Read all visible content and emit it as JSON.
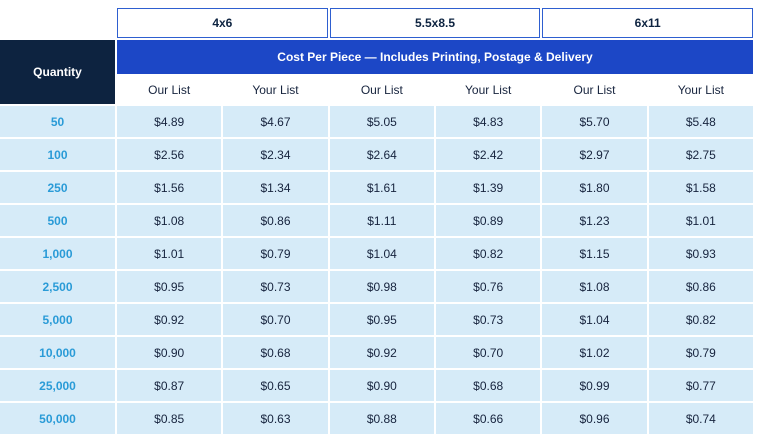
{
  "table": {
    "quantity_label": "Quantity",
    "banner": "Cost Per Piece — Includes Printing, Postage & Delivery",
    "size_headers": [
      "4x6",
      "5.5x8.5",
      "6x11"
    ],
    "sub_headers": [
      "Our List",
      "Your List"
    ],
    "rows": [
      {
        "quantity": "50",
        "prices": [
          "$4.89",
          "$4.67",
          "$5.05",
          "$4.83",
          "$5.70",
          "$5.48"
        ]
      },
      {
        "quantity": "100",
        "prices": [
          "$2.56",
          "$2.34",
          "$2.64",
          "$2.42",
          "$2.97",
          "$2.75"
        ]
      },
      {
        "quantity": "250",
        "prices": [
          "$1.56",
          "$1.34",
          "$1.61",
          "$1.39",
          "$1.80",
          "$1.58"
        ]
      },
      {
        "quantity": "500",
        "prices": [
          "$1.08",
          "$0.86",
          "$1.11",
          "$0.89",
          "$1.23",
          "$1.01"
        ]
      },
      {
        "quantity": "1,000",
        "prices": [
          "$1.01",
          "$0.79",
          "$1.04",
          "$0.82",
          "$1.15",
          "$0.93"
        ]
      },
      {
        "quantity": "2,500",
        "prices": [
          "$0.95",
          "$0.73",
          "$0.98",
          "$0.76",
          "$1.08",
          "$0.86"
        ]
      },
      {
        "quantity": "5,000",
        "prices": [
          "$0.92",
          "$0.70",
          "$0.95",
          "$0.73",
          "$1.04",
          "$0.82"
        ]
      },
      {
        "quantity": "10,000",
        "prices": [
          "$0.90",
          "$0.68",
          "$0.92",
          "$0.70",
          "$1.02",
          "$0.79"
        ]
      },
      {
        "quantity": "25,000",
        "prices": [
          "$0.87",
          "$0.65",
          "$0.90",
          "$0.68",
          "$0.99",
          "$0.77"
        ]
      },
      {
        "quantity": "50,000",
        "prices": [
          "$0.85",
          "$0.63",
          "$0.88",
          "$0.66",
          "$0.96",
          "$0.74"
        ]
      }
    ]
  },
  "colors": {
    "banner_blue": "#1C47C6",
    "header_navy": "#0D2340",
    "row_light_blue": "#D6EBF8",
    "quantity_text_blue": "#2A9BD7",
    "size_border_blue": "#2E5FD0",
    "price_text_navy": "#16233D"
  },
  "chart_data": {
    "type": "table",
    "title": "Cost Per Piece — Includes Printing, Postage & Delivery",
    "column_groups": [
      "4x6",
      "5.5x8.5",
      "6x11"
    ],
    "columns": [
      "Quantity",
      "4x6 Our List",
      "4x6 Your List",
      "5.5x8.5 Our List",
      "5.5x8.5 Your List",
      "6x11 Our List",
      "6x11 Your List"
    ],
    "rows": [
      [
        "50",
        4.89,
        4.67,
        5.05,
        4.83,
        5.7,
        5.48
      ],
      [
        "100",
        2.56,
        2.34,
        2.64,
        2.42,
        2.97,
        2.75
      ],
      [
        "250",
        1.56,
        1.34,
        1.61,
        1.39,
        1.8,
        1.58
      ],
      [
        "500",
        1.08,
        0.86,
        1.11,
        0.89,
        1.23,
        1.01
      ],
      [
        "1,000",
        1.01,
        0.79,
        1.04,
        0.82,
        1.15,
        0.93
      ],
      [
        "2,500",
        0.95,
        0.73,
        0.98,
        0.76,
        1.08,
        0.86
      ],
      [
        "5,000",
        0.92,
        0.7,
        0.95,
        0.73,
        1.04,
        0.82
      ],
      [
        "10,000",
        0.9,
        0.68,
        0.92,
        0.7,
        1.02,
        0.79
      ],
      [
        "25,000",
        0.87,
        0.65,
        0.9,
        0.68,
        0.99,
        0.77
      ],
      [
        "50,000",
        0.85,
        0.63,
        0.88,
        0.66,
        0.96,
        0.74
      ]
    ]
  }
}
